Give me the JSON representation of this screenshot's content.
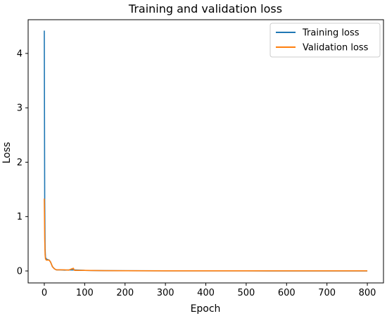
{
  "chart_data": {
    "type": "line",
    "title": "Training and validation loss",
    "xlabel": "Epoch",
    "ylabel": "Loss",
    "xlim": [
      -40,
      840
    ],
    "ylim": [
      -0.22,
      4.62
    ],
    "xticks": [
      0,
      100,
      200,
      300,
      400,
      500,
      600,
      700,
      800
    ],
    "yticks": [
      0,
      1,
      2,
      3,
      4
    ],
    "grid": false,
    "legend_position": "top-right",
    "series": [
      {
        "name": "Training loss",
        "color": "#1f77b4",
        "x": [
          0,
          1,
          2,
          3,
          5,
          8,
          12,
          15,
          18,
          20,
          25,
          30,
          40,
          50,
          70,
          100,
          150,
          200,
          300,
          400,
          500,
          600,
          700,
          800
        ],
        "y": [
          4.42,
          1.3,
          0.4,
          0.25,
          0.22,
          0.21,
          0.2,
          0.17,
          0.12,
          0.08,
          0.04,
          0.02,
          0.02,
          0.015,
          0.02,
          0.01,
          0.006,
          0.004,
          0.003,
          0.002,
          0.002,
          0.001,
          0.001,
          0.001
        ]
      },
      {
        "name": "Validation loss",
        "color": "#ff7f0e",
        "x": [
          0,
          1,
          2,
          3,
          5,
          8,
          12,
          15,
          18,
          20,
          25,
          30,
          40,
          50,
          60,
          72,
          74,
          76,
          100,
          150,
          200,
          300,
          400,
          500,
          600,
          700,
          800
        ],
        "y": [
          1.33,
          0.6,
          0.3,
          0.22,
          0.2,
          0.2,
          0.2,
          0.17,
          0.12,
          0.08,
          0.04,
          0.02,
          0.02,
          0.02,
          0.015,
          0.05,
          0.015,
          0.01,
          0.01,
          0.005,
          0.004,
          0.003,
          0.003,
          0.002,
          0.002,
          0.002,
          0.002
        ]
      }
    ]
  }
}
